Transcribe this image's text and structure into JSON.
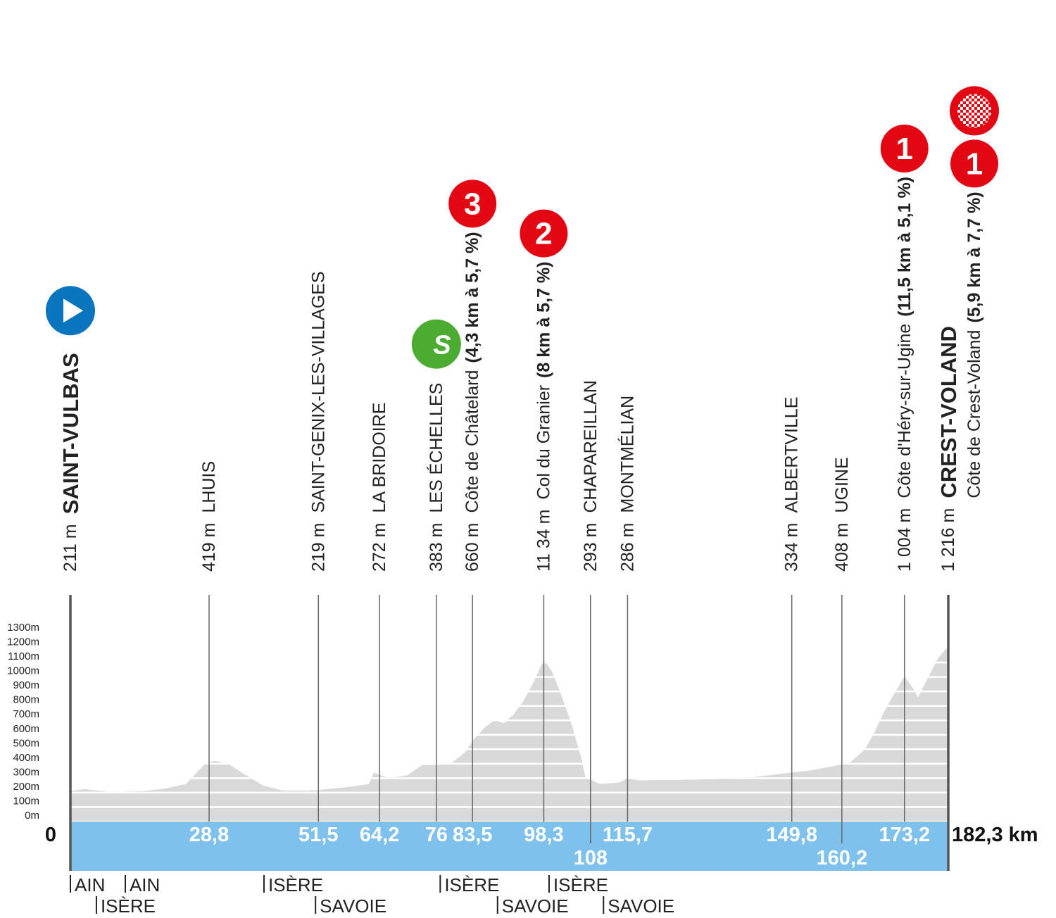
{
  "chart_data": {
    "type": "area",
    "color": "#d9d9d9",
    "band_color": "#7dc1ec",
    "grid": true,
    "x": [
      0,
      3,
      8,
      15,
      20,
      24,
      26,
      28,
      30,
      33,
      36,
      40,
      44,
      50,
      52,
      58,
      62,
      63,
      66,
      70,
      73,
      76,
      79,
      82,
      84,
      86,
      88,
      90,
      92,
      94,
      96,
      98.3,
      100,
      102,
      104,
      106,
      107,
      108,
      110,
      112,
      114,
      115.7,
      118,
      130,
      140,
      149.8,
      153,
      158,
      162,
      165,
      167,
      169,
      171,
      173.2,
      175,
      176,
      178,
      180,
      182.3
    ],
    "values": [
      211,
      225,
      205,
      210,
      230,
      260,
      330,
      400,
      420,
      395,
      330,
      250,
      215,
      215,
      220,
      240,
      260,
      340,
      300,
      320,
      390,
      390,
      400,
      480,
      580,
      650,
      700,
      680,
      740,
      830,
      950,
      1120,
      1040,
      870,
      680,
      450,
      300,
      290,
      260,
      265,
      270,
      300,
      285,
      290,
      300,
      340,
      350,
      380,
      410,
      500,
      620,
      760,
      880,
      1004,
      920,
      860,
      990,
      1120,
      1216
    ],
    "xlim": [
      0,
      182.3
    ],
    "ylim": [
      0,
      1300
    ],
    "yticks": [
      {
        "value": 0,
        "label": "0m"
      },
      {
        "value": 100,
        "label": "100m"
      },
      {
        "value": 200,
        "label": "200m"
      },
      {
        "value": 300,
        "label": "300m"
      },
      {
        "value": 400,
        "label": "400m"
      },
      {
        "value": 500,
        "label": "500m"
      },
      {
        "value": 600,
        "label": "600m"
      },
      {
        "value": 700,
        "label": "700m"
      },
      {
        "value": 800,
        "label": "800m"
      },
      {
        "value": 900,
        "label": "900m"
      },
      {
        "value": 1000,
        "label": "1000m"
      },
      {
        "value": 1100,
        "label": "1100m"
      },
      {
        "value": 1200,
        "label": "1200m"
      },
      {
        "value": 1300,
        "label": "1300m"
      }
    ],
    "xticks": [
      0,
      {
        "value": 28.8,
        "label": "28,8"
      },
      {
        "value": 51.5,
        "label": "51,5"
      },
      {
        "value": 64.2,
        "label": "64,2"
      },
      76,
      {
        "value": 83.5,
        "label": "83,5"
      },
      {
        "value": 98.3,
        "label": "98,3"
      },
      108,
      {
        "value": 115.7,
        "label": "115,7"
      },
      {
        "value": 149.8,
        "label": "149,8"
      },
      {
        "value": 160.2,
        "label": "160,2"
      },
      {
        "value": 173.2,
        "label": "173,2"
      },
      {
        "value": 182.3,
        "label": "182,3 km"
      }
    ],
    "waypoints": [
      {
        "altitude": "211 m",
        "name": "SAINT-VULBAS"
      },
      {
        "altitude": "419 m",
        "name": "LHUIS"
      },
      {
        "altitude": "219 m",
        "name": "SAINT-GENIX-LES-VILLAGES"
      },
      {
        "altitude": "272 m",
        "name": "LA BRIDOIRE"
      },
      {
        "altitude": "383 m",
        "name": "LES ÉCHELLES",
        "sprint": "S"
      },
      {
        "altitude": "660 m",
        "name": "Côte de Châtelard",
        "detail": "(4,3 km à 5,7 %)",
        "category": 3
      },
      {
        "altitude": "11 34 m",
        "name": "Col du Granier",
        "detail": "(8 km à 5,7 %)",
        "category": 2
      },
      {
        "altitude": "293 m",
        "name": "CHAPAREILLAN"
      },
      {
        "altitude": "286 m",
        "name": "MONTMÉLIAN"
      },
      {
        "altitude": "334 m",
        "name": "ALBERTVILLE"
      },
      {
        "altitude": "408 m",
        "name": "UGINE"
      },
      {
        "altitude": "1 004 m",
        "name": "Côte d'Héry-sur-Ugine",
        "detail": "(11,5 km à 5,1 %)",
        "category": 1
      },
      {
        "altitude": "1 216 m",
        "name": "CREST-VOLAND",
        "climb": "Côte de Crest-Voland",
        "detail": "(5,9 km à 7,7 %)",
        "category": 1
      }
    ],
    "borders": [
      {
        "label": "AIN",
        "x": 0
      },
      {
        "label": "ISÈRE",
        "x": 5.4
      },
      {
        "label": "AIN",
        "x": 11.4
      },
      {
        "label": "ISÈRE",
        "x": 40.2
      },
      {
        "label": "SAVOIE",
        "x": 50.9
      },
      {
        "label": "ISÈRE",
        "x": 76.8
      },
      {
        "label": "SAVOIE",
        "x": 88.7
      },
      {
        "label": "ISÈRE",
        "x": 99.4
      },
      {
        "label": "SAVOIE",
        "x": 110.7
      }
    ]
  }
}
